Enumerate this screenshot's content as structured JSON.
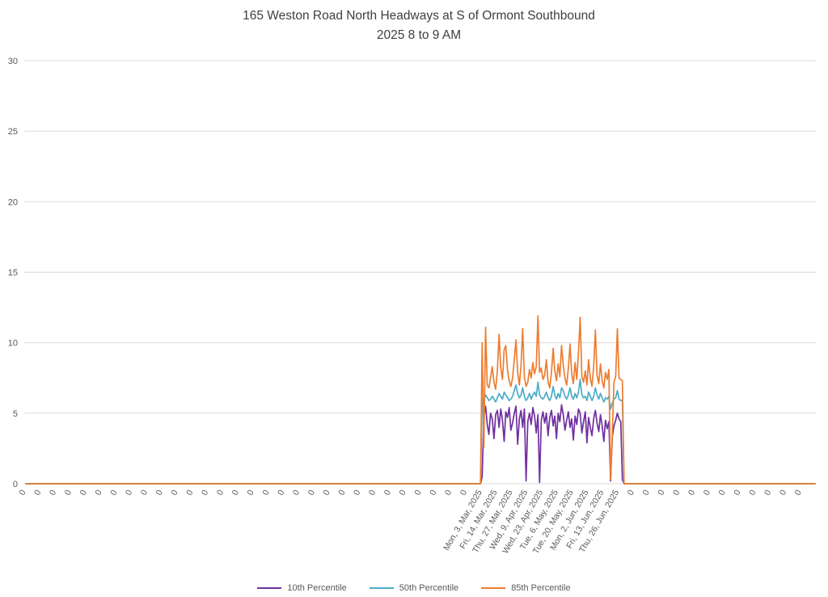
{
  "chart_data": {
    "type": "line",
    "title": "165 Weston Road North Headways at S of Ormont Southbound",
    "subtitle": "2025 8 to 9 AM",
    "xlabel": "",
    "ylabel": "",
    "ylim": [
      0,
      30
    ],
    "yticks": [
      0,
      5,
      10,
      15,
      20,
      25,
      30
    ],
    "grid": true,
    "grid_color": "#d9d9d9",
    "legend_position": "bottom",
    "baseline_value": 0,
    "x_axis": {
      "total_points": 468,
      "active_start_point": 270,
      "label_every_n_points": 9,
      "tick_labels": [
        "0",
        "0",
        "0",
        "0",
        "0",
        "0",
        "0",
        "0",
        "0",
        "0",
        "0",
        "0",
        "0",
        "0",
        "0",
        "0",
        "0",
        "0",
        "0",
        "0",
        "0",
        "0",
        "0",
        "0",
        "0",
        "0",
        "0",
        "0",
        "0",
        "0",
        "Mon, 3, Mar, 2025",
        "Fri, 14, Mar, 2025",
        "Thu, 27, Mar, 2025",
        "Wed, 9, Apr, 2025",
        "Wed, 23, Apr, 2025",
        "Tue, 6, May, 2025",
        "Tue, 20, May, 2025",
        "Mon, 2, Jun, 2025",
        "Fri, 13, Jun, 2025",
        "Thu, 26, Jun, 2025",
        "0",
        "0",
        "0",
        "0",
        "0",
        "0",
        "0",
        "0",
        "0",
        "0",
        "0",
        "0"
      ]
    },
    "series": [
      {
        "name": "10th Percentile",
        "color": "#7030A0",
        "active_values": [
          0.5,
          4.8,
          5.5,
          4.2,
          3.5,
          5.0,
          4.6,
          3.2,
          4.9,
          5.2,
          4.0,
          5.3,
          4.5,
          3.0,
          5.1,
          4.7,
          5.4,
          3.8,
          4.3,
          5.0,
          5.5,
          2.8,
          4.6,
          5.2,
          4.0,
          5.3,
          0.2,
          4.4,
          5.0,
          4.2,
          5.4,
          4.8,
          3.6,
          4.9,
          0.1,
          4.5,
          5.1,
          4.3,
          5.0,
          3.4,
          4.7,
          5.2,
          4.1,
          4.8,
          3.2,
          5.0,
          4.4,
          5.6,
          4.9,
          3.8,
          4.5,
          5.1,
          4.0,
          4.6,
          3.1,
          4.8,
          4.2,
          5.3,
          5.0,
          3.6,
          4.4,
          5.1,
          2.9,
          4.7,
          4.0,
          3.4,
          4.6,
          5.2,
          4.3,
          3.7,
          4.9,
          4.1,
          3.0,
          4.5,
          3.9,
          4.4,
          0.2,
          3.3,
          4.1,
          4.5,
          5.0,
          4.6,
          4.4,
          0.3
        ]
      },
      {
        "name": "50th Percentile",
        "color": "#4BACC6",
        "active_values": [
          6.0,
          5.9,
          6.3,
          6.1,
          5.9,
          6.0,
          6.2,
          6.0,
          5.8,
          6.1,
          6.4,
          6.2,
          6.0,
          6.5,
          6.3,
          6.1,
          5.9,
          6.0,
          6.2,
          6.6,
          7.0,
          6.4,
          6.1,
          6.3,
          6.8,
          6.2,
          5.9,
          6.1,
          6.4,
          6.0,
          6.3,
          6.5,
          6.2,
          7.2,
          6.3,
          6.1,
          6.0,
          6.2,
          6.5,
          6.1,
          5.9,
          6.2,
          6.9,
          6.3,
          6.0,
          6.4,
          6.1,
          6.8,
          6.6,
          6.2,
          6.0,
          6.3,
          6.8,
          6.2,
          6.0,
          6.4,
          6.1,
          6.5,
          7.4,
          6.3,
          6.1,
          6.2,
          5.9,
          6.5,
          6.2,
          5.9,
          6.2,
          6.8,
          6.3,
          6.0,
          6.4,
          6.1,
          5.8,
          6.1,
          6.0,
          6.2,
          5.3,
          5.7,
          6.0,
          6.1,
          6.6,
          6.0,
          5.9,
          5.9
        ]
      },
      {
        "name": "85th Percentile",
        "color": "#ED7D31",
        "active_values": [
          10.0,
          2.6,
          11.1,
          7.0,
          6.8,
          7.5,
          8.3,
          7.2,
          6.7,
          8.0,
          10.6,
          8.2,
          7.4,
          9.5,
          9.8,
          8.1,
          7.3,
          6.9,
          7.5,
          8.8,
          10.2,
          7.9,
          7.0,
          8.4,
          11.0,
          7.6,
          6.9,
          7.2,
          8.1,
          7.5,
          8.6,
          7.8,
          8.3,
          11.9,
          7.9,
          8.2,
          7.4,
          7.7,
          8.8,
          7.2,
          6.8,
          7.9,
          9.6,
          8.0,
          7.3,
          8.5,
          7.6,
          9.8,
          8.4,
          7.5,
          7.0,
          8.2,
          9.9,
          7.8,
          7.1,
          8.6,
          7.4,
          9.3,
          11.8,
          7.6,
          7.2,
          8.0,
          7.0,
          8.8,
          7.5,
          6.9,
          8.3,
          10.9,
          7.7,
          7.1,
          8.5,
          7.3,
          6.8,
          7.9,
          7.4,
          8.1,
          0.3,
          3.5,
          7.2,
          7.6,
          11.0,
          7.5,
          7.4,
          7.3
        ]
      }
    ]
  }
}
